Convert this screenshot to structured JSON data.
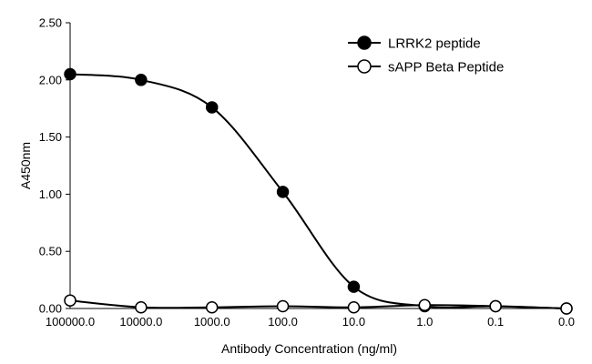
{
  "chart_data": {
    "type": "line",
    "title": "",
    "xlabel": "Antibody Concentration (ng/ml)",
    "ylabel": "A450nm",
    "categories": [
      "100000.0",
      "10000.0",
      "1000.0",
      "100.0",
      "10.0",
      "1.0",
      "0.1",
      "0.0"
    ],
    "ylim": [
      0,
      2.5
    ],
    "yticks": [
      "0.00",
      "0.50",
      "1.00",
      "1.50",
      "2.00",
      "2.50"
    ],
    "grid": false,
    "legend_position": "top-right",
    "series": [
      {
        "name": "LRRK2 peptide",
        "marker": "filled-circle",
        "color": "#000000",
        "values": [
          2.05,
          2.0,
          1.76,
          1.02,
          0.19,
          0.02,
          0.02,
          0.0
        ]
      },
      {
        "name": "sAPP Beta Peptide",
        "marker": "open-circle",
        "color": "#000000",
        "values": [
          0.07,
          0.01,
          0.01,
          0.02,
          0.01,
          0.03,
          0.02,
          0.0
        ]
      }
    ]
  }
}
